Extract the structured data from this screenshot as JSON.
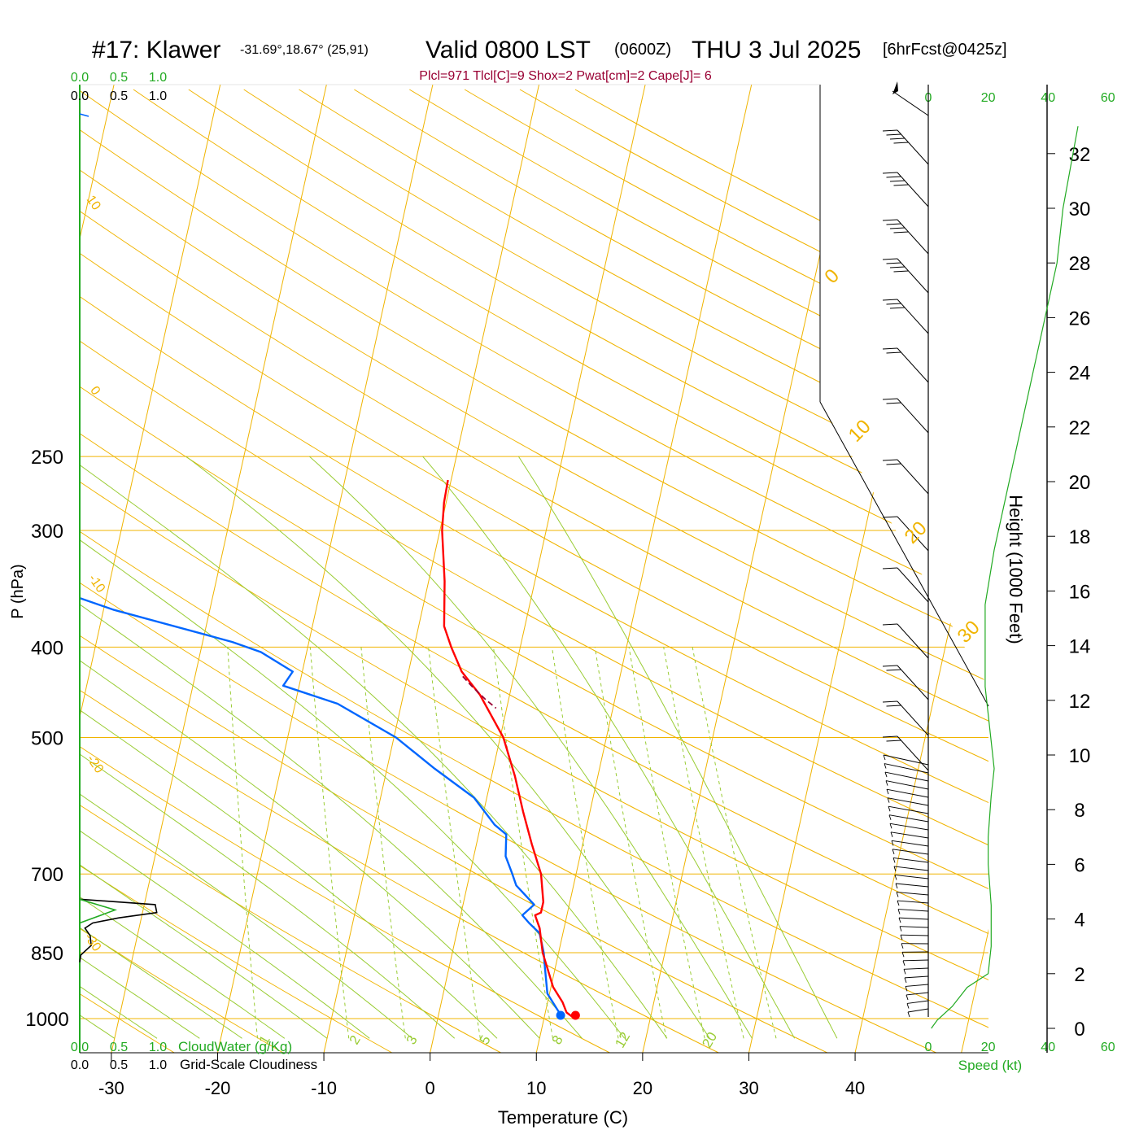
{
  "header": {
    "station": "#17: Klawer",
    "coords": "-31.69°,18.67° (25,91)",
    "valid": "Valid 0800 LST",
    "zulu": "(0600Z)",
    "date": "THU 3 Jul 2025",
    "forecast": "[6hrFcst@0425z]",
    "indices": "Plcl=971 Tlcl[C]=9 Shox=2 Pwat[cm]=2 Cape[J]= 6"
  },
  "colors": {
    "temperature": "#ff0000",
    "dewpoint": "#0066ff",
    "isotherm": "#f0b400",
    "dry_adiabat": "#f0b400",
    "moist_adiabat": "#99cc33",
    "mixing_ratio": "#99cc33",
    "cloudwater": "#22aa22",
    "wind_speed": "#22aa22",
    "parcel": "#990033",
    "black": "#000000"
  },
  "chart_data": {
    "type": "skew-t log-p sounding",
    "xlabel": "Temperature (C)",
    "ylabel": "P (hPa)",
    "y2label": "Height (1000 Feet)",
    "x_ticks": [
      -30,
      -20,
      -10,
      0,
      10,
      20,
      30,
      40
    ],
    "p_ticks": [
      250,
      300,
      400,
      500,
      700,
      850,
      1000
    ],
    "height_ticks": [
      0,
      2,
      4,
      6,
      8,
      10,
      12,
      14,
      16,
      18,
      20,
      22,
      24,
      26,
      28,
      30,
      32
    ],
    "temperature_profile": [
      {
        "p": 1000,
        "t": 12.9
      },
      {
        "p": 985,
        "t": 12.0
      },
      {
        "p": 960,
        "t": 11.4
      },
      {
        "p": 925,
        "t": 10.2
      },
      {
        "p": 880,
        "t": 9.2
      },
      {
        "p": 850,
        "t": 8.5
      },
      {
        "p": 800,
        "t": 7.7
      },
      {
        "p": 775,
        "t": 7.0
      },
      {
        "p": 770,
        "t": 7.5
      },
      {
        "p": 750,
        "t": 7.5
      },
      {
        "p": 700,
        "t": 6.7
      },
      {
        "p": 650,
        "t": 5.2
      },
      {
        "p": 600,
        "t": 3.7
      },
      {
        "p": 550,
        "t": 2.2
      },
      {
        "p": 500,
        "t": 0.3
      },
      {
        "p": 450,
        "t": -2.8
      },
      {
        "p": 425,
        "t": -5.0
      },
      {
        "p": 400,
        "t": -6.5
      },
      {
        "p": 380,
        "t": -7.6
      },
      {
        "p": 340,
        "t": -8.5
      },
      {
        "p": 300,
        "t": -9.8
      },
      {
        "p": 280,
        "t": -10.2
      },
      {
        "p": 265,
        "t": -10.3
      }
    ],
    "dewpoint_profile": [
      {
        "p": 1000,
        "t": 11.5
      },
      {
        "p": 985,
        "t": 11.3
      },
      {
        "p": 940,
        "t": 9.8
      },
      {
        "p": 880,
        "t": 9.0
      },
      {
        "p": 850,
        "t": 8.6
      },
      {
        "p": 810,
        "t": 7.8
      },
      {
        "p": 790,
        "t": 6.6
      },
      {
        "p": 775,
        "t": 5.8
      },
      {
        "p": 755,
        "t": 6.7
      },
      {
        "p": 720,
        "t": 4.6
      },
      {
        "p": 700,
        "t": 4.0
      },
      {
        "p": 670,
        "t": 3.0
      },
      {
        "p": 635,
        "t": 2.6
      },
      {
        "p": 620,
        "t": 1.3
      },
      {
        "p": 580,
        "t": -1.2
      },
      {
        "p": 540,
        "t": -5.5
      },
      {
        "p": 500,
        "t": -9.8
      },
      {
        "p": 460,
        "t": -16.0
      },
      {
        "p": 440,
        "t": -21.5
      },
      {
        "p": 425,
        "t": -20.9
      },
      {
        "p": 405,
        "t": -24.3
      },
      {
        "p": 395,
        "t": -27.2
      },
      {
        "p": 365,
        "t": -39.0
      },
      {
        "p": 350,
        "t": -44.0
      },
      {
        "p": 260,
        "t": -84.0
      },
      {
        "p": 255,
        "t": -85.0
      }
    ],
    "surface_points": {
      "temperature": 12.9,
      "dewpoint": 11.5
    },
    "isotherm_labels": [
      0,
      10,
      20,
      30
    ],
    "dry_adiabat_labels": [
      10,
      0,
      -10,
      -20,
      -30
    ],
    "mixing_ratio_labels": [
      "1",
      "2",
      "3",
      "5",
      "8",
      "12",
      "20"
    ],
    "cloudwater_axis": {
      "label": "CloudWater (g/Kg)",
      "ticks": [
        "0.0",
        "0.5",
        "1.0"
      ]
    },
    "cloudiness_axis": {
      "label": "Grid-Scale Cloudiness",
      "ticks": [
        "0.0",
        "0.5",
        "1.0"
      ]
    },
    "wind_speed_axis": {
      "label": "Speed (kt)",
      "ticks": [
        0,
        20,
        40,
        60
      ]
    },
    "wind_speed_profile": [
      {
        "h": 0.0,
        "s": 1
      },
      {
        "h": 0.3,
        "s": 3
      },
      {
        "h": 0.8,
        "s": 8
      },
      {
        "h": 1.5,
        "s": 13
      },
      {
        "h": 2.0,
        "s": 20
      },
      {
        "h": 3.0,
        "s": 21
      },
      {
        "h": 4.5,
        "s": 21
      },
      {
        "h": 6.0,
        "s": 20
      },
      {
        "h": 7.0,
        "s": 20
      },
      {
        "h": 8.5,
        "s": 21
      },
      {
        "h": 9.5,
        "s": 22
      },
      {
        "h": 10.5,
        "s": 21
      },
      {
        "h": 12.5,
        "s": 19
      },
      {
        "h": 13.5,
        "s": 19
      },
      {
        "h": 15.5,
        "s": 19
      },
      {
        "h": 17.5,
        "s": 22
      },
      {
        "h": 20.0,
        "s": 27
      },
      {
        "h": 23.0,
        "s": 33
      },
      {
        "h": 25.5,
        "s": 38
      },
      {
        "h": 28.0,
        "s": 43
      },
      {
        "h": 30.0,
        "s": 45
      },
      {
        "h": 33.0,
        "s": 50
      }
    ],
    "cloudiness_profile": [
      {
        "p": 870,
        "v": 0.0
      },
      {
        "p": 855,
        "v": 0.02
      },
      {
        "p": 835,
        "v": 0.22
      },
      {
        "p": 815,
        "v": 0.2
      },
      {
        "p": 800,
        "v": 0.1
      },
      {
        "p": 790,
        "v": 0.25
      },
      {
        "p": 780,
        "v": 0.75
      },
      {
        "p": 770,
        "v": 1.48
      },
      {
        "p": 755,
        "v": 1.45
      },
      {
        "p": 745,
        "v": 0.0
      }
    ],
    "cloudwater_profile": [
      {
        "p": 790,
        "v": 0.0
      },
      {
        "p": 765,
        "v": 0.68
      },
      {
        "p": 745,
        "v": 0.0
      }
    ]
  }
}
